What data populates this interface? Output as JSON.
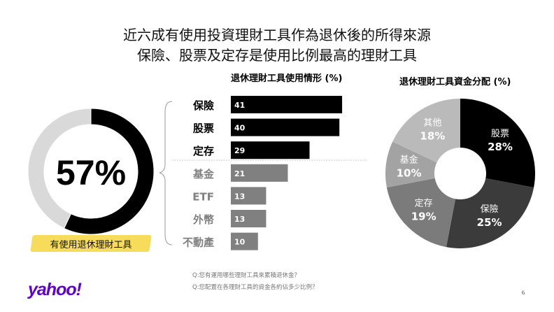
{
  "title": {
    "line1": "近六成有使用投資理財工具作為退休後的所得來源",
    "line2": "保險、股票及定存是使用比例最高的理財工具"
  },
  "footnotes": [
    "Q:您有運用哪些理財工具來累積退休金？",
    "Q:您配置在各理財工具的資金各約佔多少比例？"
  ],
  "logo": "yahoo!",
  "page_number": "6",
  "colors": {
    "black": "#000000",
    "gray": "#808080",
    "light": "#d9d9d9",
    "highlight": "#f6d84a",
    "brand": "#6001d2"
  },
  "chart_data": [
    {
      "type": "pie",
      "variant": "donut",
      "value": 57,
      "label": "57%",
      "caption": "有使用退休理財工具"
    },
    {
      "type": "bar",
      "orientation": "horizontal",
      "title": "退休理財工具使用情形 (%)",
      "categories": [
        "保險",
        "股票",
        "定存",
        "基金",
        "ETF",
        "外幣",
        "不動產"
      ],
      "values": [
        41,
        40,
        29,
        21,
        13,
        13,
        10
      ],
      "highlighted": [
        "保險",
        "股票",
        "定存"
      ]
    },
    {
      "type": "pie",
      "variant": "donut",
      "title": "退休理財工具資金分配 (%)",
      "slices": [
        {
          "label": "股票",
          "value": 28,
          "color": "#000000"
        },
        {
          "label": "保險",
          "value": 25,
          "color": "#3b3b3b"
        },
        {
          "label": "定存",
          "value": 19,
          "color": "#7b7b7b"
        },
        {
          "label": "基金",
          "value": 10,
          "color": "#a3a3a3"
        },
        {
          "label": "其他",
          "value": 18,
          "color": "#bababa"
        }
      ]
    }
  ]
}
